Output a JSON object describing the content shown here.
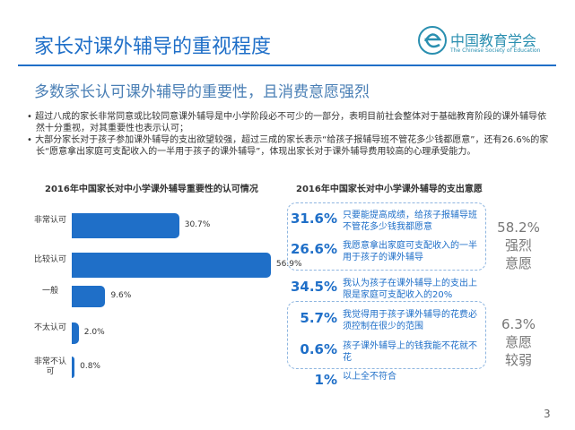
{
  "header": {
    "title": "家长对课外辅导的重视程度",
    "logo_cn": "中国教育学会",
    "logo_en": "The Chinese Society of Education"
  },
  "subtitle": "多数家长认可课外辅导的重要性，且消费意愿强烈",
  "bullets": [
    "超过八成的家长非常同意或比较同意课外辅导是中小学阶段必不可少的一部分，表明目前社会整体对于基础教育阶段的课外辅导依然十分重视，对其重要性也表示认可；",
    "大部分家长对于孩子参加课外辅导的支出欲望较强，超过三成的家长表示“给孩子报辅导班不管花多少钱都愿意”，还有26.6%的家长“愿意拿出家庭可支配收入的一半用于孩子的课外辅导”，体现出家长对于课外辅导费用较高的心理承受能力。"
  ],
  "chart_data": {
    "type": "bar",
    "orientation": "horizontal",
    "title": "2016年中国家长对中小学课外辅导重要性的认可情况",
    "categories": [
      "非常认可",
      "比较认可",
      "一般",
      "不太认可",
      "非常不认可"
    ],
    "values": [
      30.7,
      56.9,
      9.6,
      2.0,
      0.8
    ],
    "value_labels": [
      "30.7%",
      "56.9%",
      "9.6%",
      "2.0%",
      "0.8%"
    ],
    "color": "#1f6fc8"
  },
  "spending": {
    "title": "2016年中国家长对中小学课外辅导的支出意愿",
    "items": [
      {
        "pct": "31.6%",
        "text": "只要能提高成绩，给孩子报辅导班不管花多少钱我都愿意"
      },
      {
        "pct": "26.6%",
        "text": "我愿意拿出家庭可支配收入的一半用于孩子的课外辅导"
      },
      {
        "pct": "34.5%",
        "text": "我认为孩子在课外辅导上的支出上限是家庭可支配收入的20%"
      },
      {
        "pct": "5.7%",
        "text": "我觉得用于孩子课外辅导的花费必须控制在很少的范围"
      },
      {
        "pct": "0.6%",
        "text": "孩子课外辅导上的钱我能不花就不花"
      },
      {
        "pct": "1%",
        "text": "以上全不符合"
      }
    ],
    "groups": [
      {
        "pct": "58.2%",
        "label": "强烈意愿"
      },
      {
        "pct": "6.3%",
        "label": "意愿较弱"
      }
    ]
  },
  "page_number": "3"
}
